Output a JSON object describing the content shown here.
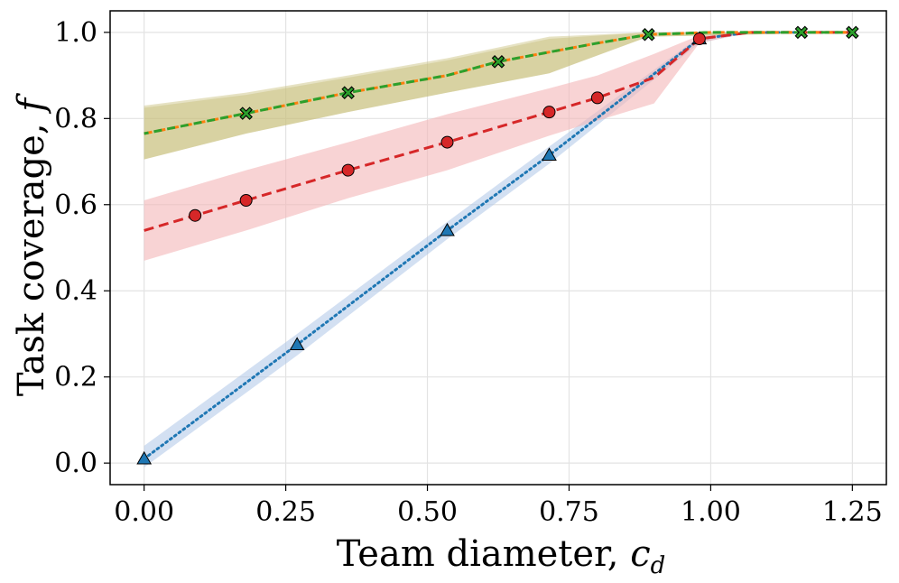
{
  "chart_data": {
    "type": "line",
    "title": "",
    "xlabel": "Team diameter, ",
    "xlabel_var": "c",
    "xlabel_sub": "d",
    "ylabel": "Task coverage, ",
    "ylabel_var": "f",
    "xlim": [
      -0.06,
      1.31
    ],
    "ylim": [
      -0.05,
      1.05
    ],
    "xticks": [
      0.0,
      0.25,
      0.5,
      0.75,
      1.0,
      1.25
    ],
    "xtick_labels": [
      "0.00",
      "0.25",
      "0.50",
      "0.75",
      "1.00",
      "1.25"
    ],
    "yticks": [
      0.0,
      0.2,
      0.4,
      0.6,
      0.8,
      1.0
    ],
    "ytick_labels": [
      "0.0",
      "0.2",
      "0.4",
      "0.6",
      "0.8",
      "1.0"
    ],
    "grid": true,
    "colors": {
      "blue": "#1f77b4",
      "red": "#d62728",
      "green": "#2ca02c",
      "orange": "#ff7f0e",
      "blue_band": "#aec7e8",
      "red_band": "#f4b6b7",
      "olive_band": "#c8bf7a"
    },
    "series": [
      {
        "name": "blue",
        "line": [
          [
            0.0,
            0.01
          ],
          [
            0.27,
            0.275
          ],
          [
            0.535,
            0.54
          ],
          [
            0.715,
            0.715
          ],
          [
            0.98,
            0.985
          ],
          [
            1.07,
            1.0
          ],
          [
            1.25,
            1.0
          ]
        ],
        "band_upper": [
          [
            0.0,
            0.04
          ],
          [
            0.27,
            0.3
          ],
          [
            0.535,
            0.56
          ],
          [
            0.715,
            0.735
          ],
          [
            0.98,
            0.99
          ],
          [
            1.07,
            1.0
          ],
          [
            1.25,
            1.0
          ]
        ],
        "band_lower": [
          [
            0.0,
            -0.01
          ],
          [
            0.27,
            0.25
          ],
          [
            0.535,
            0.52
          ],
          [
            0.715,
            0.695
          ],
          [
            0.98,
            0.975
          ],
          [
            1.07,
            1.0
          ],
          [
            1.25,
            1.0
          ]
        ],
        "markers": [
          [
            0.0,
            0.01
          ],
          [
            0.27,
            0.275
          ],
          [
            0.535,
            0.54
          ],
          [
            0.715,
            0.715
          ],
          [
            0.98,
            0.985
          ]
        ],
        "marker": "triangle",
        "line_style": "dotted"
      },
      {
        "name": "red",
        "line": [
          [
            0.0,
            0.54
          ],
          [
            0.09,
            0.575
          ],
          [
            0.18,
            0.61
          ],
          [
            0.36,
            0.68
          ],
          [
            0.535,
            0.745
          ],
          [
            0.715,
            0.815
          ],
          [
            0.8,
            0.848
          ],
          [
            0.9,
            0.895
          ],
          [
            0.98,
            0.985
          ],
          [
            1.07,
            1.0
          ],
          [
            1.25,
            1.0
          ]
        ],
        "band_upper": [
          [
            0.0,
            0.61
          ],
          [
            0.18,
            0.68
          ],
          [
            0.36,
            0.745
          ],
          [
            0.535,
            0.81
          ],
          [
            0.715,
            0.87
          ],
          [
            0.8,
            0.9
          ],
          [
            0.9,
            0.95
          ],
          [
            0.98,
            0.993
          ],
          [
            1.07,
            1.0
          ],
          [
            1.25,
            1.0
          ]
        ],
        "band_lower": [
          [
            0.0,
            0.47
          ],
          [
            0.18,
            0.54
          ],
          [
            0.36,
            0.615
          ],
          [
            0.535,
            0.68
          ],
          [
            0.715,
            0.76
          ],
          [
            0.8,
            0.795
          ],
          [
            0.9,
            0.835
          ],
          [
            0.98,
            0.975
          ],
          [
            1.07,
            1.0
          ],
          [
            1.25,
            1.0
          ]
        ],
        "markers": [
          [
            0.09,
            0.575
          ],
          [
            0.18,
            0.61
          ],
          [
            0.36,
            0.68
          ],
          [
            0.535,
            0.745
          ],
          [
            0.715,
            0.815
          ],
          [
            0.8,
            0.848
          ],
          [
            0.98,
            0.985
          ]
        ],
        "marker": "circle",
        "line_style": "dashed"
      },
      {
        "name": "orange",
        "line": [
          [
            0.0,
            0.765
          ],
          [
            0.18,
            0.812
          ],
          [
            0.36,
            0.86
          ],
          [
            0.535,
            0.9
          ],
          [
            0.625,
            0.932
          ],
          [
            0.8,
            0.975
          ],
          [
            0.89,
            0.995
          ],
          [
            1.0,
            1.0
          ],
          [
            1.16,
            1.0
          ],
          [
            1.25,
            1.0
          ]
        ],
        "band_upper": [
          [
            0.0,
            0.83
          ],
          [
            0.18,
            0.86
          ],
          [
            0.36,
            0.9
          ],
          [
            0.535,
            0.94
          ],
          [
            0.715,
            0.99
          ],
          [
            0.89,
            1.0
          ],
          [
            1.25,
            1.0
          ]
        ],
        "band_lower": [
          [
            0.0,
            0.705
          ],
          [
            0.18,
            0.765
          ],
          [
            0.36,
            0.815
          ],
          [
            0.535,
            0.86
          ],
          [
            0.715,
            0.905
          ],
          [
            0.89,
            0.99
          ],
          [
            1.25,
            1.0
          ]
        ],
        "markers": [],
        "marker": "none",
        "line_style": "dashed"
      },
      {
        "name": "green",
        "line": [
          [
            0.0,
            0.765
          ],
          [
            0.18,
            0.812
          ],
          [
            0.36,
            0.86
          ],
          [
            0.535,
            0.9
          ],
          [
            0.625,
            0.932
          ],
          [
            0.8,
            0.975
          ],
          [
            0.89,
            0.995
          ],
          [
            1.0,
            1.0
          ],
          [
            1.16,
            1.0
          ],
          [
            1.25,
            1.0
          ]
        ],
        "band_upper": [
          [
            0.0,
            0.825
          ],
          [
            0.18,
            0.855
          ],
          [
            0.36,
            0.895
          ],
          [
            0.535,
            0.935
          ],
          [
            0.715,
            0.985
          ],
          [
            0.89,
            1.0
          ],
          [
            1.25,
            1.0
          ]
        ],
        "band_lower": [
          [
            0.0,
            0.705
          ],
          [
            0.18,
            0.765
          ],
          [
            0.36,
            0.815
          ],
          [
            0.535,
            0.86
          ],
          [
            0.715,
            0.905
          ],
          [
            0.89,
            0.99
          ],
          [
            1.25,
            1.0
          ]
        ],
        "markers": [
          [
            0.18,
            0.812
          ],
          [
            0.36,
            0.86
          ],
          [
            0.625,
            0.932
          ],
          [
            0.89,
            0.995
          ],
          [
            1.16,
            1.0
          ],
          [
            1.25,
            1.0
          ]
        ],
        "marker": "x",
        "line_style": "dashed"
      }
    ]
  }
}
